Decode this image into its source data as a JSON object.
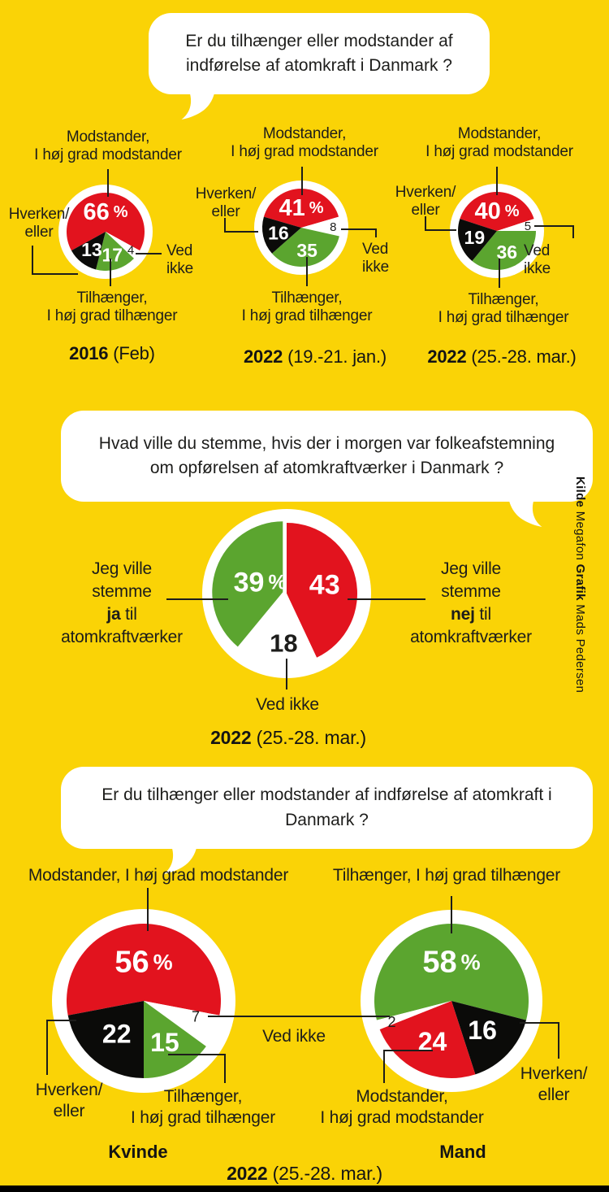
{
  "colors": {
    "background": "#FAD306",
    "red": "#E2131E",
    "green": "#5BA52F",
    "black": "#0B0B09",
    "white": "#FFFFFF",
    "text": "#1D1D1B",
    "bottom_bar": "#000000"
  },
  "bubbles": [
    {
      "text": "Er du tilhænger eller modstander af\nindførelse af atomkraft i Danmark ?"
    },
    {
      "text": "Hvad ville du stemme, hvis der i morgen var folkeafstemning\nom opførelsen af atomkraftværker i Danmark ?"
    },
    {
      "text": "Er du tilhænger eller modstander af indførelse af atomkraft i\nDanmark ?"
    }
  ],
  "vote_labels": {
    "yes": {
      "pre": "Jeg ville\nstemme\n",
      "bold": "ja",
      "post": " til\natomkraftværker"
    },
    "no": {
      "pre": "Jeg ville\nstemme\n",
      "bold": "nej",
      "post": " til\natomkraftværker"
    }
  },
  "bottom": {
    "ved_ikke": "Ved ikke",
    "caption": {
      "bold": "2022",
      "rest": " (25.-28. mar.)"
    }
  },
  "credit": {
    "parts": [
      {
        "t": "Kilde",
        "b": true
      },
      {
        "t": " Megafon ",
        "b": false
      },
      {
        "t": "Grafik",
        "b": true
      },
      {
        "t": " Mads Pedersen",
        "b": false
      }
    ]
  },
  "chart_data": [
    {
      "id": "poll-2016",
      "type": "pie",
      "question": "Er du tilhænger eller modstander af indførelse af atomkraft i Danmark ?",
      "caption": {
        "bold": "2016",
        "rest": " (Feb)"
      },
      "unit": "%",
      "start_deg": -118.8,
      "slices": [
        {
          "label": "Modstander,\nI høj grad modstander",
          "value": 66,
          "color": "red"
        },
        {
          "label": "Ved\nikke",
          "value": 4,
          "color": "white"
        },
        {
          "label": "Tilhænger,\nI høj grad tilhænger",
          "value": 17,
          "color": "green"
        },
        {
          "label": "Hverken/\neller",
          "value": 13,
          "color": "black"
        }
      ]
    },
    {
      "id": "poll-2022-jan",
      "type": "pie",
      "question": "Er du tilhænger eller modstander af indførelse af atomkraft i Danmark ?",
      "caption": {
        "bold": "2022",
        "rest": " (19.-21. jan.)"
      },
      "unit": "%",
      "start_deg": -73.8,
      "slices": [
        {
          "label": "Modstander,\nI høj grad modstander",
          "value": 41,
          "color": "red"
        },
        {
          "label": "Ved\nikke",
          "value": 8,
          "color": "white"
        },
        {
          "label": "Tilhænger,\nI høj grad tilhænger",
          "value": 35,
          "color": "green"
        },
        {
          "label": "Hverken/\neller",
          "value": 16,
          "color": "black"
        }
      ]
    },
    {
      "id": "poll-2022-mar",
      "type": "pie",
      "question": "Er du tilhænger eller modstander af indførelse af atomkraft i Danmark ?",
      "caption": {
        "bold": "2022",
        "rest": " (25.-28. mar.)"
      },
      "unit": "%",
      "start_deg": -72,
      "slices": [
        {
          "label": "Modstander,\nI høj grad modstander",
          "value": 40,
          "color": "red"
        },
        {
          "label": "Ved\nikke",
          "value": 5,
          "color": "white"
        },
        {
          "label": "Tilhænger,\nI høj grad tilhænger",
          "value": 36,
          "color": "green"
        },
        {
          "label": "Hverken/\neller",
          "value": 19,
          "color": "black"
        }
      ]
    },
    {
      "id": "vote",
      "type": "pie",
      "question": "Hvad ville du stemme, hvis der i morgen var folkeafstemning om opførelsen af atomkraftværker i Danmark ?",
      "caption": {
        "bold": "2022",
        "rest": " (25.-28. mar.)"
      },
      "unit": "%",
      "start_deg": 0,
      "slices": [
        {
          "label": "Jeg ville stemme nej til atomkraftværker",
          "value": 43,
          "color": "red"
        },
        {
          "label": "Ved ikke",
          "value": 18,
          "color": "white"
        },
        {
          "label": "Jeg ville stemme ja til atomkraftværker",
          "value": 39,
          "color": "green"
        }
      ]
    },
    {
      "id": "kvinde",
      "type": "pie",
      "group": "Kvinde",
      "question": "Er du tilhænger eller modstander af indførelse af atomkraft i Danmark ?",
      "caption": {
        "bold": "2022",
        "rest": " (25.-28. mar.)"
      },
      "unit": "%",
      "start_deg": -100.8,
      "slices": [
        {
          "label": "Modstander, I høj grad modstander",
          "value": 56,
          "color": "red"
        },
        {
          "label": "Ved ikke",
          "value": 7,
          "color": "white"
        },
        {
          "label": "Tilhænger,\nI høj grad tilhænger",
          "value": 15,
          "color": "green"
        },
        {
          "label": "Hverken/\neller",
          "value": 22,
          "color": "black"
        }
      ]
    },
    {
      "id": "mand",
      "type": "pie",
      "group": "Mand",
      "question": "Er du tilhænger eller modstander af indførelse af atomkraft i Danmark ?",
      "caption": {
        "bold": "2022",
        "rest": " (25.-28. mar.)"
      },
      "unit": "%",
      "start_deg": -104.4,
      "slices": [
        {
          "label": "Tilhænger, I høj grad tilhænger",
          "value": 58,
          "color": "green"
        },
        {
          "label": "Hverken/\neller",
          "value": 16,
          "color": "black"
        },
        {
          "label": "Modstander,\nI høj grad modstander",
          "value": 24,
          "color": "red"
        },
        {
          "label": "Ved ikke",
          "value": 2,
          "color": "white"
        }
      ]
    }
  ]
}
